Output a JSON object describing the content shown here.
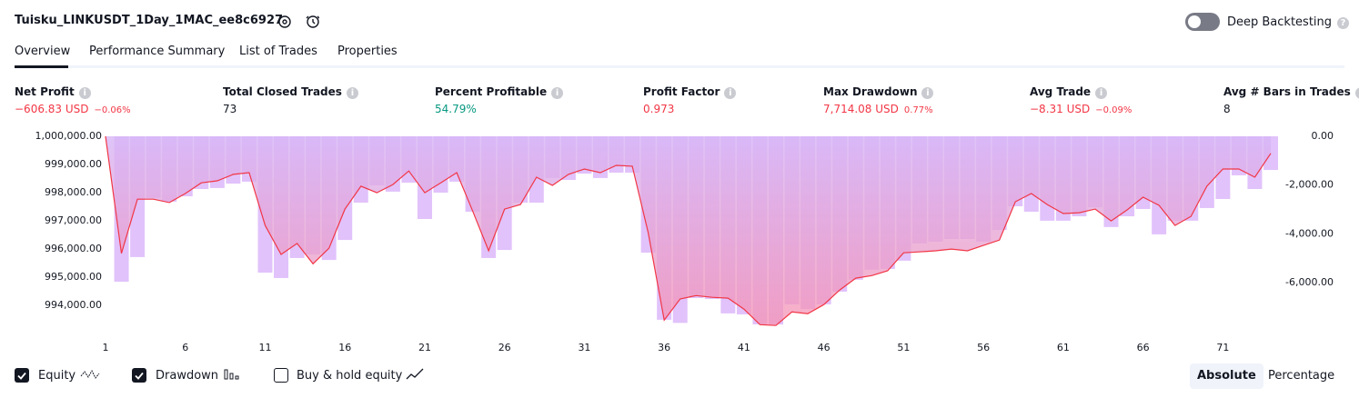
{
  "header": {
    "title": "Tuisku_LINKUSDT_1Day_1MAC_ee8c6927",
    "deep_backtesting": "Deep Backtesting"
  },
  "tabs": [
    "Overview",
    "Performance Summary",
    "List of Trades",
    "Properties"
  ],
  "metrics": [
    {
      "label": "Net Profit",
      "value": "−606.83 USD",
      "percent": "−0.06%",
      "tone": "red"
    },
    {
      "label": "Total Closed Trades",
      "value": "73",
      "tone": "plain"
    },
    {
      "label": "Percent Profitable",
      "value": "54.79%",
      "tone": "green"
    },
    {
      "label": "Profit Factor",
      "value": "0.973",
      "tone": "red"
    },
    {
      "label": "Max Drawdown",
      "value": "7,714.08 USD",
      "percent": "0.77%",
      "tone": "red"
    },
    {
      "label": "Avg Trade",
      "value": "−8.31 USD",
      "percent": "−0.09%",
      "tone": "red"
    },
    {
      "label": "Avg # Bars in Trades",
      "value": "8",
      "tone": "plain"
    }
  ],
  "chart_data": {
    "type": "line",
    "x": [
      1,
      2,
      3,
      4,
      5,
      6,
      7,
      8,
      9,
      10,
      11,
      12,
      13,
      14,
      15,
      16,
      17,
      18,
      19,
      20,
      21,
      22,
      23,
      24,
      25,
      26,
      27,
      28,
      29,
      30,
      31,
      32,
      33,
      34,
      35,
      36,
      37,
      38,
      39,
      40,
      41,
      42,
      43,
      44,
      45,
      46,
      47,
      48,
      49,
      50,
      51,
      52,
      53,
      54,
      55,
      56,
      57,
      58,
      59,
      60,
      61,
      62,
      63,
      64,
      65,
      66,
      67,
      68,
      69,
      70,
      71,
      72,
      73,
      74
    ],
    "xlim": [
      1,
      74
    ],
    "xticks": [
      1,
      6,
      11,
      16,
      21,
      26,
      31,
      36,
      41,
      46,
      51,
      56,
      61,
      66,
      71
    ],
    "ylim": [
      993200,
      1000000
    ],
    "yticks": [
      {
        "value": 1000000,
        "label": "1,000,000.00"
      },
      {
        "value": 999000,
        "label": "999,000.00"
      },
      {
        "value": 998000,
        "label": "998,000.00"
      },
      {
        "value": 997000,
        "label": "997,000.00"
      },
      {
        "value": 996000,
        "label": "996,000.00"
      },
      {
        "value": 995000,
        "label": "995,000.00"
      },
      {
        "value": 994000,
        "label": "994,000.00"
      }
    ],
    "y2lim": [
      -7860,
      0
    ],
    "y2ticks": [
      {
        "value": 0,
        "label": "0.00"
      },
      {
        "value": -2000,
        "label": "-2,000.00"
      },
      {
        "value": -4000,
        "label": "-4,000.00"
      },
      {
        "value": -6000,
        "label": "-6,000.00"
      }
    ],
    "series": [
      {
        "name": "Equity",
        "color": "#f23645",
        "checked": true,
        "values": [
          1000000,
          995850,
          997770,
          997770,
          997650,
          997970,
          998350,
          998420,
          998650,
          998710,
          996840,
          995810,
          996200,
          995480,
          996030,
          997420,
          998230,
          998000,
          998290,
          998770,
          998000,
          998350,
          998710,
          997350,
          995940,
          997420,
          997580,
          998550,
          998260,
          998650,
          998840,
          998710,
          998970,
          998940,
          996580,
          993480,
          994230,
          994350,
          994290,
          994260,
          993870,
          993320,
          993290,
          993770,
          993710,
          994030,
          994550,
          994970,
          995060,
          995230,
          995870,
          995900,
          995940,
          996000,
          995940,
          996130,
          996320,
          997680,
          997970,
          997580,
          997260,
          997290,
          997420,
          997000,
          997390,
          997840,
          997550,
          996840,
          997160,
          998230,
          998840,
          998840,
          998550,
          999393
        ]
      },
      {
        "name": "Drawdown",
        "color": "#e1c2fb",
        "checked": true,
        "axis": "y2",
        "values": [
          0,
          -5960,
          -4950,
          -2530,
          -2680,
          -2460,
          -2160,
          -2120,
          -1940,
          -1860,
          -5590,
          -5810,
          -4990,
          -4840,
          -5070,
          -4250,
          -2720,
          -2010,
          -2270,
          -1900,
          -3390,
          -2310,
          -1860,
          -3090,
          -4990,
          -4660,
          -2720,
          -2720,
          -1710,
          -1790,
          -1530,
          -1710,
          -1490,
          -1490,
          -4770,
          -7520,
          -7650,
          -6630,
          -6670,
          -7260,
          -7300,
          -7710,
          -7714,
          -6890,
          -7080,
          -6890,
          -6370,
          -5880,
          -5470,
          -5440,
          -5100,
          -4390,
          -4320,
          -4210,
          -4210,
          -4320,
          -3840,
          -2870,
          -3090,
          -3460,
          -3460,
          -3280,
          -2910,
          -3720,
          -3280,
          -2980,
          -4020,
          -3460,
          -3460,
          -2940,
          -2570,
          -1600,
          -2160,
          -1380
        ]
      }
    ],
    "buy_hold": {
      "label": "Buy & hold equity",
      "checked": false
    }
  },
  "modes": [
    "Absolute",
    "Percentage"
  ],
  "active_mode": 0
}
